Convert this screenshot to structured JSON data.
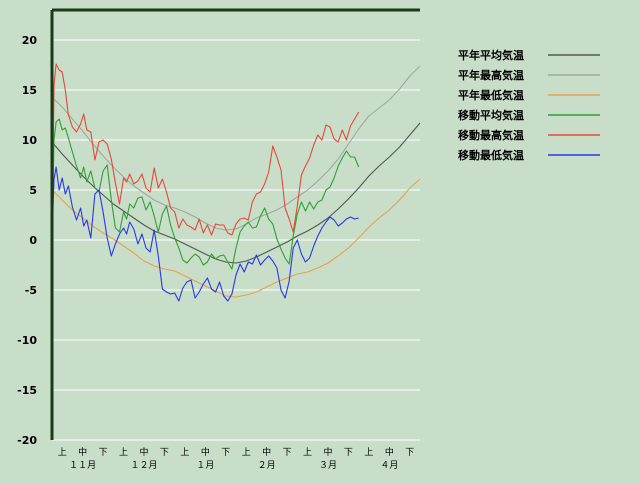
{
  "chart_data": {
    "type": "line",
    "ylim": [
      -20,
      23
    ],
    "yticks": [
      20,
      15,
      10,
      5,
      0,
      -5,
      -10,
      -15,
      -20
    ],
    "x_range": [
      0,
      18
    ],
    "x_tick_labels": [
      "上",
      "中",
      "下",
      "上",
      "中",
      "下",
      "上",
      "中",
      "下",
      "上",
      "中",
      "下",
      "上",
      "中",
      "下",
      "上",
      "中",
      "下"
    ],
    "month_labels": [
      "１１月",
      "１２月",
      "１月",
      "２月",
      "３月",
      "４月"
    ],
    "grid": true,
    "legend_position": "right",
    "colors": {
      "background": "#c8dec8",
      "plot_border": "#1a3a1a",
      "grid": "#ffffff",
      "axis_text": "#000000"
    },
    "series": [
      {
        "name": "平年平均気温",
        "color": "#505850",
        "x": [
          0,
          0.5,
          1,
          1.5,
          2,
          2.5,
          3,
          3.5,
          4,
          4.5,
          5,
          5.5,
          6,
          6.5,
          7,
          7.5,
          8,
          8.5,
          9,
          9.5,
          10,
          10.5,
          11,
          11.5,
          12,
          12.5,
          13,
          13.5,
          14,
          14.5,
          15,
          15.5,
          16,
          16.5,
          17,
          17.5,
          18
        ],
        "values": [
          9.8,
          8.6,
          7.5,
          6.4,
          5.4,
          4.5,
          3.6,
          2.9,
          2.2,
          1.5,
          0.9,
          0.5,
          0.1,
          -0.4,
          -0.9,
          -1.4,
          -1.9,
          -2.2,
          -2.3,
          -2.1,
          -1.7,
          -1.2,
          -0.7,
          -0.2,
          0.4,
          0.9,
          1.5,
          2.2,
          3.1,
          4.1,
          5.2,
          6.4,
          7.4,
          8.3,
          9.3,
          10.5,
          11.7
        ]
      },
      {
        "name": "平年最高気温",
        "color": "#a0a8a0",
        "x": [
          0,
          0.5,
          1,
          1.5,
          2,
          2.5,
          3,
          3.5,
          4,
          4.5,
          5,
          5.5,
          6,
          6.5,
          7,
          7.5,
          8,
          8.5,
          9,
          9.5,
          10,
          10.5,
          11,
          11.5,
          12,
          12.5,
          13,
          13.5,
          14,
          14.5,
          15,
          15.5,
          16,
          16.5,
          17,
          17.5,
          18
        ],
        "values": [
          14.3,
          13.3,
          12.1,
          10.9,
          9.6,
          8.4,
          7.3,
          6.3,
          5.4,
          4.7,
          4.0,
          3.5,
          3.2,
          2.8,
          2.3,
          1.7,
          1.2,
          1.0,
          1.1,
          1.6,
          2.2,
          2.6,
          3.0,
          3.6,
          4.3,
          5.0,
          5.9,
          6.9,
          8.1,
          9.6,
          11.1,
          12.4,
          13.2,
          14.0,
          15.1,
          16.4,
          17.4
        ]
      },
      {
        "name": "平年最低気温",
        "color": "#e8a050",
        "x": [
          0,
          0.5,
          1,
          1.5,
          2,
          2.5,
          3,
          3.5,
          4,
          4.5,
          5,
          5.5,
          6,
          6.5,
          7,
          7.5,
          8,
          8.5,
          9,
          9.5,
          10,
          10.5,
          11,
          11.5,
          12,
          12.5,
          13,
          13.5,
          14,
          14.5,
          15,
          15.5,
          16,
          16.5,
          17,
          17.5,
          18
        ],
        "values": [
          5.0,
          4.0,
          3.0,
          2.2,
          1.4,
          0.7,
          0.1,
          -0.6,
          -1.3,
          -2.1,
          -2.6,
          -2.9,
          -3.1,
          -3.6,
          -4.1,
          -4.6,
          -5.1,
          -5.6,
          -5.7,
          -5.5,
          -5.2,
          -4.7,
          -4.2,
          -3.8,
          -3.4,
          -3.2,
          -2.8,
          -2.3,
          -1.6,
          -0.8,
          0.2,
          1.3,
          2.2,
          3.0,
          4.0,
          5.2,
          6.1
        ]
      },
      {
        "name": "移動平均気温",
        "color": "#30a030",
        "x": [
          0,
          0.1,
          0.2,
          0.35,
          0.5,
          0.65,
          0.8,
          1.0,
          1.2,
          1.4,
          1.55,
          1.7,
          1.9,
          2.1,
          2.3,
          2.5,
          2.7,
          2.9,
          3.1,
          3.3,
          3.5,
          3.65,
          3.8,
          4.0,
          4.2,
          4.4,
          4.6,
          4.8,
          5.0,
          5.2,
          5.4,
          5.6,
          5.8,
          6.0,
          6.2,
          6.4,
          6.6,
          6.8,
          7.0,
          7.2,
          7.4,
          7.6,
          7.8,
          8.0,
          8.2,
          8.4,
          8.6,
          8.8,
          9.0,
          9.2,
          9.4,
          9.6,
          9.8,
          10.0,
          10.2,
          10.4,
          10.6,
          10.8,
          11.0,
          11.2,
          11.4,
          11.6,
          11.8,
          12.0,
          12.2,
          12.4,
          12.6,
          12.8,
          13.0,
          13.2,
          13.4,
          13.6,
          13.8,
          14.0,
          14.2,
          14.4,
          14.6,
          14.8,
          15.0
        ],
        "values": [
          0.0,
          10.0,
          11.8,
          12.1,
          11.0,
          11.2,
          10.2,
          8.8,
          7.4,
          6.2,
          7.3,
          5.8,
          6.9,
          5.2,
          4.8,
          6.9,
          7.5,
          4.0,
          1.2,
          0.8,
          2.8,
          2.1,
          3.6,
          3.2,
          4.2,
          4.3,
          3.0,
          3.8,
          2.4,
          0.8,
          2.6,
          3.4,
          1.5,
          0.2,
          -0.8,
          -2.0,
          -2.3,
          -1.8,
          -1.4,
          -1.7,
          -2.5,
          -2.2,
          -1.4,
          -1.9,
          -1.6,
          -1.5,
          -2.2,
          -2.9,
          -0.8,
          0.8,
          1.4,
          1.8,
          1.2,
          1.3,
          2.4,
          3.2,
          2.1,
          1.6,
          0.1,
          -0.9,
          -1.8,
          -2.4,
          0.4,
          2.6,
          3.8,
          2.9,
          3.8,
          3.1,
          3.8,
          4.0,
          5.0,
          5.3,
          6.2,
          7.4,
          8.2,
          8.9,
          8.3,
          8.3,
          7.3
        ]
      },
      {
        "name": "移動最高気温",
        "color": "#e84838",
        "x": [
          0,
          0.1,
          0.2,
          0.35,
          0.5,
          0.65,
          0.8,
          1.0,
          1.2,
          1.4,
          1.55,
          1.7,
          1.9,
          2.1,
          2.3,
          2.5,
          2.7,
          2.9,
          3.1,
          3.3,
          3.5,
          3.65,
          3.8,
          4.0,
          4.2,
          4.4,
          4.6,
          4.8,
          5.0,
          5.2,
          5.4,
          5.6,
          5.8,
          6.0,
          6.2,
          6.4,
          6.6,
          6.8,
          7.0,
          7.2,
          7.4,
          7.6,
          7.8,
          8.0,
          8.2,
          8.4,
          8.6,
          8.8,
          9.0,
          9.2,
          9.4,
          9.6,
          9.8,
          10.0,
          10.2,
          10.4,
          10.6,
          10.8,
          11.0,
          11.2,
          11.4,
          11.6,
          11.8,
          12.0,
          12.2,
          12.4,
          12.6,
          12.8,
          13.0,
          13.2,
          13.4,
          13.6,
          13.8,
          14.0,
          14.2,
          14.4,
          14.6,
          14.8,
          15.0
        ],
        "values": [
          0.0,
          15.5,
          17.6,
          17.0,
          16.8,
          15.0,
          12.5,
          11.3,
          10.8,
          11.6,
          12.6,
          11.0,
          10.8,
          8.0,
          9.8,
          10.0,
          9.6,
          8.1,
          5.7,
          3.6,
          6.2,
          5.8,
          6.6,
          5.6,
          5.9,
          6.6,
          5.2,
          4.8,
          7.2,
          5.2,
          6.1,
          4.8,
          3.2,
          2.8,
          1.2,
          2.1,
          1.5,
          1.3,
          1.0,
          2.1,
          0.7,
          1.5,
          0.5,
          1.6,
          1.5,
          1.5,
          0.7,
          0.5,
          1.6,
          2.1,
          2.2,
          2.0,
          3.8,
          4.6,
          4.8,
          5.6,
          6.8,
          9.4,
          8.3,
          7.0,
          3.2,
          2.1,
          0.8,
          3.4,
          6.5,
          7.4,
          8.2,
          9.5,
          10.5,
          10.0,
          11.5,
          11.3,
          10.1,
          9.8,
          11.0,
          10.0,
          11.4,
          12.1,
          12.8
        ]
      },
      {
        "name": "移動最低気温",
        "color": "#2838e8",
        "x": [
          0,
          0.1,
          0.2,
          0.35,
          0.5,
          0.65,
          0.8,
          1.0,
          1.2,
          1.4,
          1.55,
          1.7,
          1.9,
          2.1,
          2.3,
          2.5,
          2.7,
          2.9,
          3.1,
          3.3,
          3.5,
          3.65,
          3.8,
          4.0,
          4.2,
          4.4,
          4.6,
          4.8,
          5.0,
          5.2,
          5.4,
          5.6,
          5.8,
          6.0,
          6.2,
          6.4,
          6.6,
          6.8,
          7.0,
          7.2,
          7.4,
          7.6,
          7.8,
          8.0,
          8.2,
          8.4,
          8.6,
          8.8,
          9.0,
          9.2,
          9.4,
          9.6,
          9.8,
          10.0,
          10.2,
          10.4,
          10.6,
          10.8,
          11.0,
          11.2,
          11.4,
          11.6,
          11.8,
          12.0,
          12.2,
          12.4,
          12.6,
          12.8,
          13.0,
          13.2,
          13.4,
          13.6,
          13.8,
          14.0,
          14.2,
          14.4,
          14.6,
          14.8,
          15.0
        ],
        "values": [
          0.0,
          6.1,
          7.3,
          5.0,
          6.2,
          4.6,
          5.4,
          3.3,
          2.0,
          3.2,
          1.4,
          2.0,
          0.2,
          4.6,
          5.0,
          2.8,
          0.2,
          -1.6,
          -0.4,
          0.6,
          1.2,
          0.6,
          1.8,
          1.1,
          -0.4,
          0.6,
          -0.8,
          -1.2,
          1.0,
          -1.6,
          -4.9,
          -5.2,
          -5.4,
          -5.3,
          -6.1,
          -4.8,
          -4.2,
          -4.0,
          -5.8,
          -5.2,
          -4.4,
          -3.8,
          -4.9,
          -5.2,
          -4.2,
          -5.6,
          -6.1,
          -5.4,
          -3.5,
          -2.4,
          -3.2,
          -2.2,
          -2.4,
          -1.5,
          -2.5,
          -2.0,
          -1.6,
          -2.1,
          -2.8,
          -5.0,
          -5.8,
          -4.1,
          -0.8,
          0.0,
          -1.4,
          -2.2,
          -1.8,
          -0.6,
          0.4,
          1.2,
          1.8,
          2.3,
          2.0,
          1.4,
          1.7,
          2.1,
          2.3,
          2.1,
          2.2
        ]
      }
    ]
  }
}
